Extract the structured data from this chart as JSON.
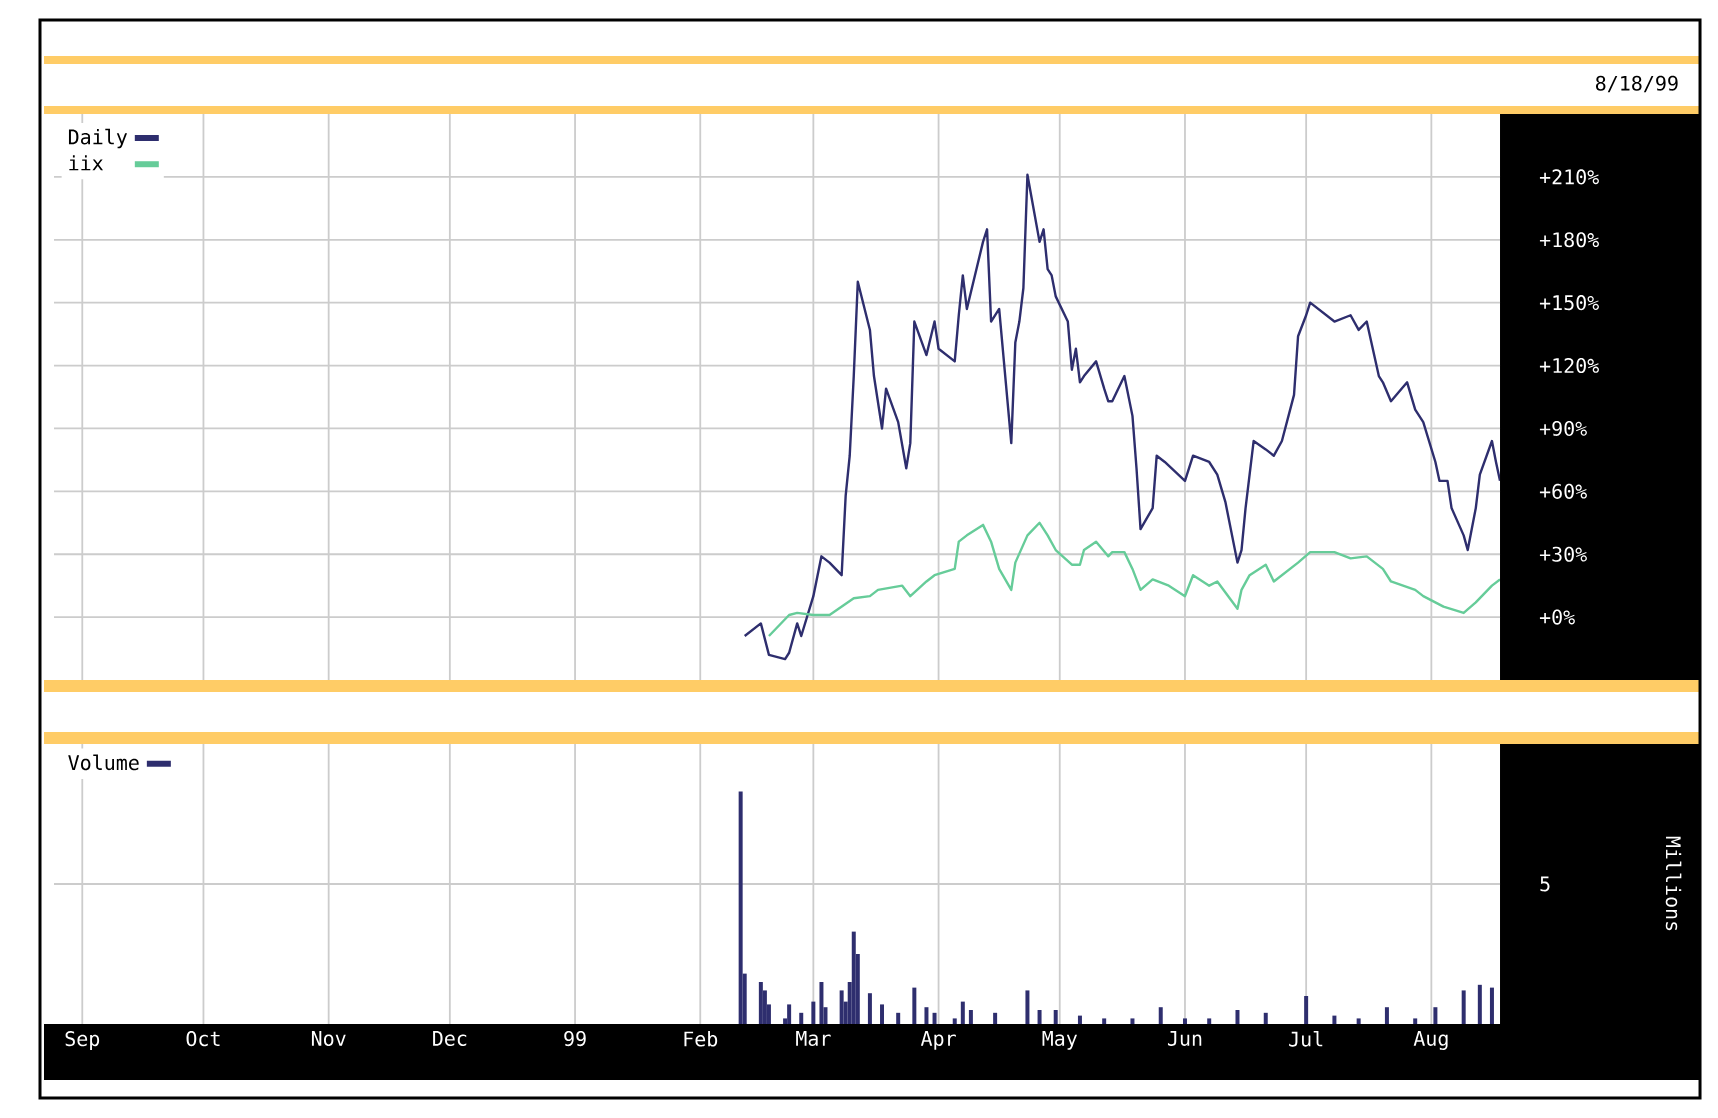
{
  "chart_data": [
    {
      "type": "line",
      "subtitle": "8/18/99",
      "xlim": [
        "1998-08-25",
        "1999-08-18"
      ],
      "xticks": [
        {
          "value": "1998-09-01",
          "label": null
        },
        {
          "value": "1998-10-01",
          "label": null
        },
        {
          "value": "1998-11-01",
          "label": null
        },
        {
          "value": "1998-12-01",
          "label": null
        },
        {
          "value": "1999-01-01",
          "label": null
        },
        {
          "value": "1999-02-01",
          "label": null
        },
        {
          "value": "1999-03-01",
          "label": null
        },
        {
          "value": "1999-04-01",
          "label": null
        },
        {
          "value": "1999-05-01",
          "label": null
        },
        {
          "value": "1999-06-01",
          "label": null
        },
        {
          "value": "1999-07-01",
          "label": null
        },
        {
          "value": "1999-08-01",
          "label": null
        }
      ],
      "ylim": [
        -30,
        240
      ],
      "yticks": [
        {
          "value": 0,
          "label": "+0%"
        },
        {
          "value": 30,
          "label": "+30%"
        },
        {
          "value": 60,
          "label": "+60%"
        },
        {
          "value": 90,
          "label": "+90%"
        },
        {
          "value": 120,
          "label": "+120%"
        },
        {
          "value": 150,
          "label": "+150%"
        },
        {
          "value": 180,
          "label": "+180%"
        },
        {
          "value": 210,
          "label": "+210%"
        }
      ],
      "grid": true,
      "legend": "top left",
      "tick_labels": "y",
      "series": [
        {
          "name": "Daily",
          "color": "#2e2e6e",
          "x": [
            "1999-02-12",
            "1999-02-16",
            "1999-02-18",
            "1999-02-22",
            "1999-02-23",
            "1999-02-25",
            "1999-02-26",
            "1999-03-01",
            "1999-03-03",
            "1999-03-05",
            "1999-03-08",
            "1999-03-09",
            "1999-03-10",
            "1999-03-11",
            "1999-03-12",
            "1999-03-15",
            "1999-03-16",
            "1999-03-18",
            "1999-03-19",
            "1999-03-22",
            "1999-03-24",
            "1999-03-25",
            "1999-03-26",
            "1999-03-29",
            "1999-03-31",
            "1999-04-01",
            "1999-04-05",
            "1999-04-06",
            "1999-04-07",
            "1999-04-08",
            "1999-04-12",
            "1999-04-13",
            "1999-04-14",
            "1999-04-15",
            "1999-04-16",
            "1999-04-19",
            "1999-04-20",
            "1999-04-21",
            "1999-04-22",
            "1999-04-23",
            "1999-04-26",
            "1999-04-27",
            "1999-04-28",
            "1999-04-29",
            "1999-04-30",
            "1999-05-03",
            "1999-05-04",
            "1999-05-05",
            "1999-05-06",
            "1999-05-07",
            "1999-05-10",
            "1999-05-12",
            "1999-05-13",
            "1999-05-14",
            "1999-05-17",
            "1999-05-19",
            "1999-05-20",
            "1999-05-21",
            "1999-05-24",
            "1999-05-25",
            "1999-05-27",
            "1999-06-01",
            "1999-06-03",
            "1999-06-07",
            "1999-06-09",
            "1999-06-11",
            "1999-06-14",
            "1999-06-15",
            "1999-06-16",
            "1999-06-18",
            "1999-06-21",
            "1999-06-23",
            "1999-06-25",
            "1999-06-28",
            "1999-06-29",
            "1999-07-01",
            "1999-07-02",
            "1999-07-06",
            "1999-07-08",
            "1999-07-12",
            "1999-07-14",
            "1999-07-16",
            "1999-07-19",
            "1999-07-20",
            "1999-07-22",
            "1999-07-26",
            "1999-07-28",
            "1999-07-30",
            "1999-08-02",
            "1999-08-03",
            "1999-08-05",
            "1999-08-06",
            "1999-08-09",
            "1999-08-10",
            "1999-08-12",
            "1999-08-13",
            "1999-08-16",
            "1999-08-17",
            "1999-08-18"
          ],
          "values": [
            -9,
            -3,
            -18,
            -20,
            -17,
            -3,
            -9,
            10,
            29,
            26,
            20,
            58,
            77,
            115,
            160,
            137,
            115,
            90,
            109,
            93,
            71,
            83,
            141,
            125,
            141,
            128,
            122,
            144,
            163,
            147,
            179,
            185,
            141,
            144,
            147,
            83,
            131,
            141,
            157,
            211,
            179,
            185,
            166,
            163,
            153,
            141,
            118,
            128,
            112,
            115,
            122,
            109,
            103,
            103,
            115,
            96,
            71,
            42,
            52,
            77,
            74,
            65,
            77,
            74,
            68,
            55,
            26,
            32,
            52,
            84,
            80,
            77,
            84,
            106,
            134,
            144,
            150,
            144,
            141,
            144,
            137,
            141,
            115,
            112,
            103,
            112,
            99,
            93,
            74,
            65,
            65,
            52,
            39,
            32,
            52,
            68,
            84,
            74,
            65
          ]
        },
        {
          "name": "iix",
          "color": "#66cc99",
          "x": [
            "1999-02-18",
            "1999-02-23",
            "1999-02-25",
            "1999-03-01",
            "1999-03-05",
            "1999-03-11",
            "1999-03-15",
            "1999-03-17",
            "1999-03-23",
            "1999-03-25",
            "1999-03-29",
            "1999-03-31",
            "1999-04-05",
            "1999-04-06",
            "1999-04-08",
            "1999-04-12",
            "1999-04-14",
            "1999-04-16",
            "1999-04-19",
            "1999-04-20",
            "1999-04-23",
            "1999-04-26",
            "1999-04-28",
            "1999-04-30",
            "1999-05-04",
            "1999-05-06",
            "1999-05-07",
            "1999-05-10",
            "1999-05-13",
            "1999-05-14",
            "1999-05-17",
            "1999-05-19",
            "1999-05-21",
            "1999-05-24",
            "1999-05-28",
            "1999-06-01",
            "1999-06-03",
            "1999-06-07",
            "1999-06-09",
            "1999-06-14",
            "1999-06-15",
            "1999-06-17",
            "1999-06-21",
            "1999-06-23",
            "1999-06-29",
            "1999-07-02",
            "1999-07-08",
            "1999-07-12",
            "1999-07-16",
            "1999-07-20",
            "1999-07-22",
            "1999-07-28",
            "1999-07-30",
            "1999-08-04",
            "1999-08-09",
            "1999-08-12",
            "1999-08-16",
            "1999-08-18"
          ],
          "values": [
            -9,
            1,
            2,
            1,
            1,
            9,
            10,
            13,
            15,
            10,
            17,
            20,
            23,
            36,
            39,
            44,
            36,
            23,
            13,
            26,
            39,
            45,
            39,
            32,
            25,
            25,
            32,
            36,
            29,
            31,
            31,
            23,
            13,
            18,
            15,
            10,
            20,
            15,
            17,
            4,
            13,
            20,
            25,
            17,
            26,
            31,
            31,
            28,
            29,
            23,
            17,
            13,
            10,
            5,
            2,
            7,
            15,
            18
          ]
        }
      ]
    },
    {
      "type": "bar",
      "ylabel": "Millions",
      "xlim": [
        "1998-08-25",
        "1999-08-18"
      ],
      "xticks": [
        {
          "value": "1998-09-01",
          "label": "Sep"
        },
        {
          "value": "1998-10-01",
          "label": "Oct"
        },
        {
          "value": "1998-11-01",
          "label": "Nov"
        },
        {
          "value": "1998-12-01",
          "label": "Dec"
        },
        {
          "value": "1999-01-01",
          "label": "99"
        },
        {
          "value": "1999-02-01",
          "label": "Feb"
        },
        {
          "value": "1999-03-01",
          "label": "Mar"
        },
        {
          "value": "1999-04-01",
          "label": "Apr"
        },
        {
          "value": "1999-05-01",
          "label": "May"
        },
        {
          "value": "1999-06-01",
          "label": "Jun"
        },
        {
          "value": "1999-07-01",
          "label": "Jul"
        },
        {
          "value": "1999-08-01",
          "label": "Aug"
        }
      ],
      "ylim": [
        0,
        10
      ],
      "yticks": [
        5
      ],
      "grid": true,
      "legend": "top left",
      "series": [
        {
          "name": "Volume",
          "color": "#2e2e6e",
          "x": [
            "1999-02-11",
            "1999-02-12",
            "1999-02-16",
            "1999-02-17",
            "1999-02-18",
            "1999-02-22",
            "1999-02-23",
            "1999-02-26",
            "1999-03-01",
            "1999-03-03",
            "1999-03-04",
            "1999-03-08",
            "1999-03-09",
            "1999-03-10",
            "1999-03-11",
            "1999-03-12",
            "1999-03-15",
            "1999-03-18",
            "1999-03-22",
            "1999-03-26",
            "1999-03-29",
            "1999-03-31",
            "1999-04-05",
            "1999-04-07",
            "1999-04-09",
            "1999-04-15",
            "1999-04-23",
            "1999-04-26",
            "1999-04-30",
            "1999-05-06",
            "1999-05-12",
            "1999-05-19",
            "1999-05-26",
            "1999-06-01",
            "1999-06-07",
            "1999-06-14",
            "1999-06-21",
            "1999-07-01",
            "1999-07-08",
            "1999-07-14",
            "1999-07-21",
            "1999-07-28",
            "1999-08-02",
            "1999-08-09",
            "1999-08-13",
            "1999-08-16"
          ],
          "values": [
            8.3,
            1.8,
            1.5,
            1.2,
            0.7,
            0.2,
            0.7,
            0.4,
            0.8,
            1.5,
            0.6,
            1.2,
            0.8,
            1.5,
            3.3,
            2.5,
            1.1,
            0.7,
            0.4,
            1.3,
            0.6,
            0.4,
            0.2,
            0.8,
            0.5,
            0.4,
            1.2,
            0.5,
            0.5,
            0.3,
            0.2,
            0.2,
            0.6,
            0.2,
            0.2,
            0.5,
            0.4,
            1.0,
            0.3,
            0.2,
            0.6,
            0.2,
            0.6,
            1.2,
            1.4,
            1.3
          ]
        }
      ]
    }
  ]
}
